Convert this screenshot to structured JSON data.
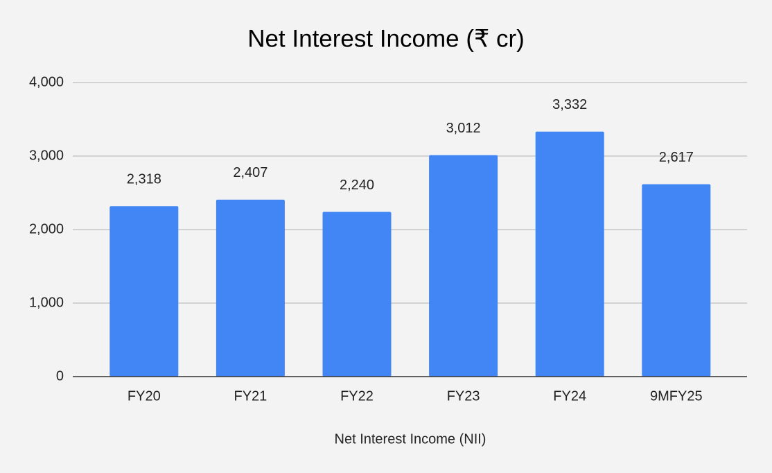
{
  "chart_data": {
    "type": "bar",
    "title": "Net Interest Income (₹ cr)",
    "x_label": "Net Interest Income (NII)",
    "categories": [
      "FY20",
      "FY21",
      "FY22",
      "FY23",
      "FY24",
      "9MFY25"
    ],
    "values": [
      2318,
      2407,
      2240,
      3012,
      3332,
      2617
    ],
    "value_labels": [
      "2,318",
      "2,407",
      "2,240",
      "3,012",
      "3,332",
      "2,617"
    ],
    "color": "#4285f4",
    "ylim": [
      0,
      4000
    ],
    "yticks": [
      0,
      {
        "value": 1000,
        "label": "1,000"
      },
      {
        "value": 2000,
        "label": "2,000"
      },
      {
        "value": 3000,
        "label": "3,000"
      },
      {
        "value": 4000,
        "label": "4,000"
      }
    ],
    "grid": true
  }
}
